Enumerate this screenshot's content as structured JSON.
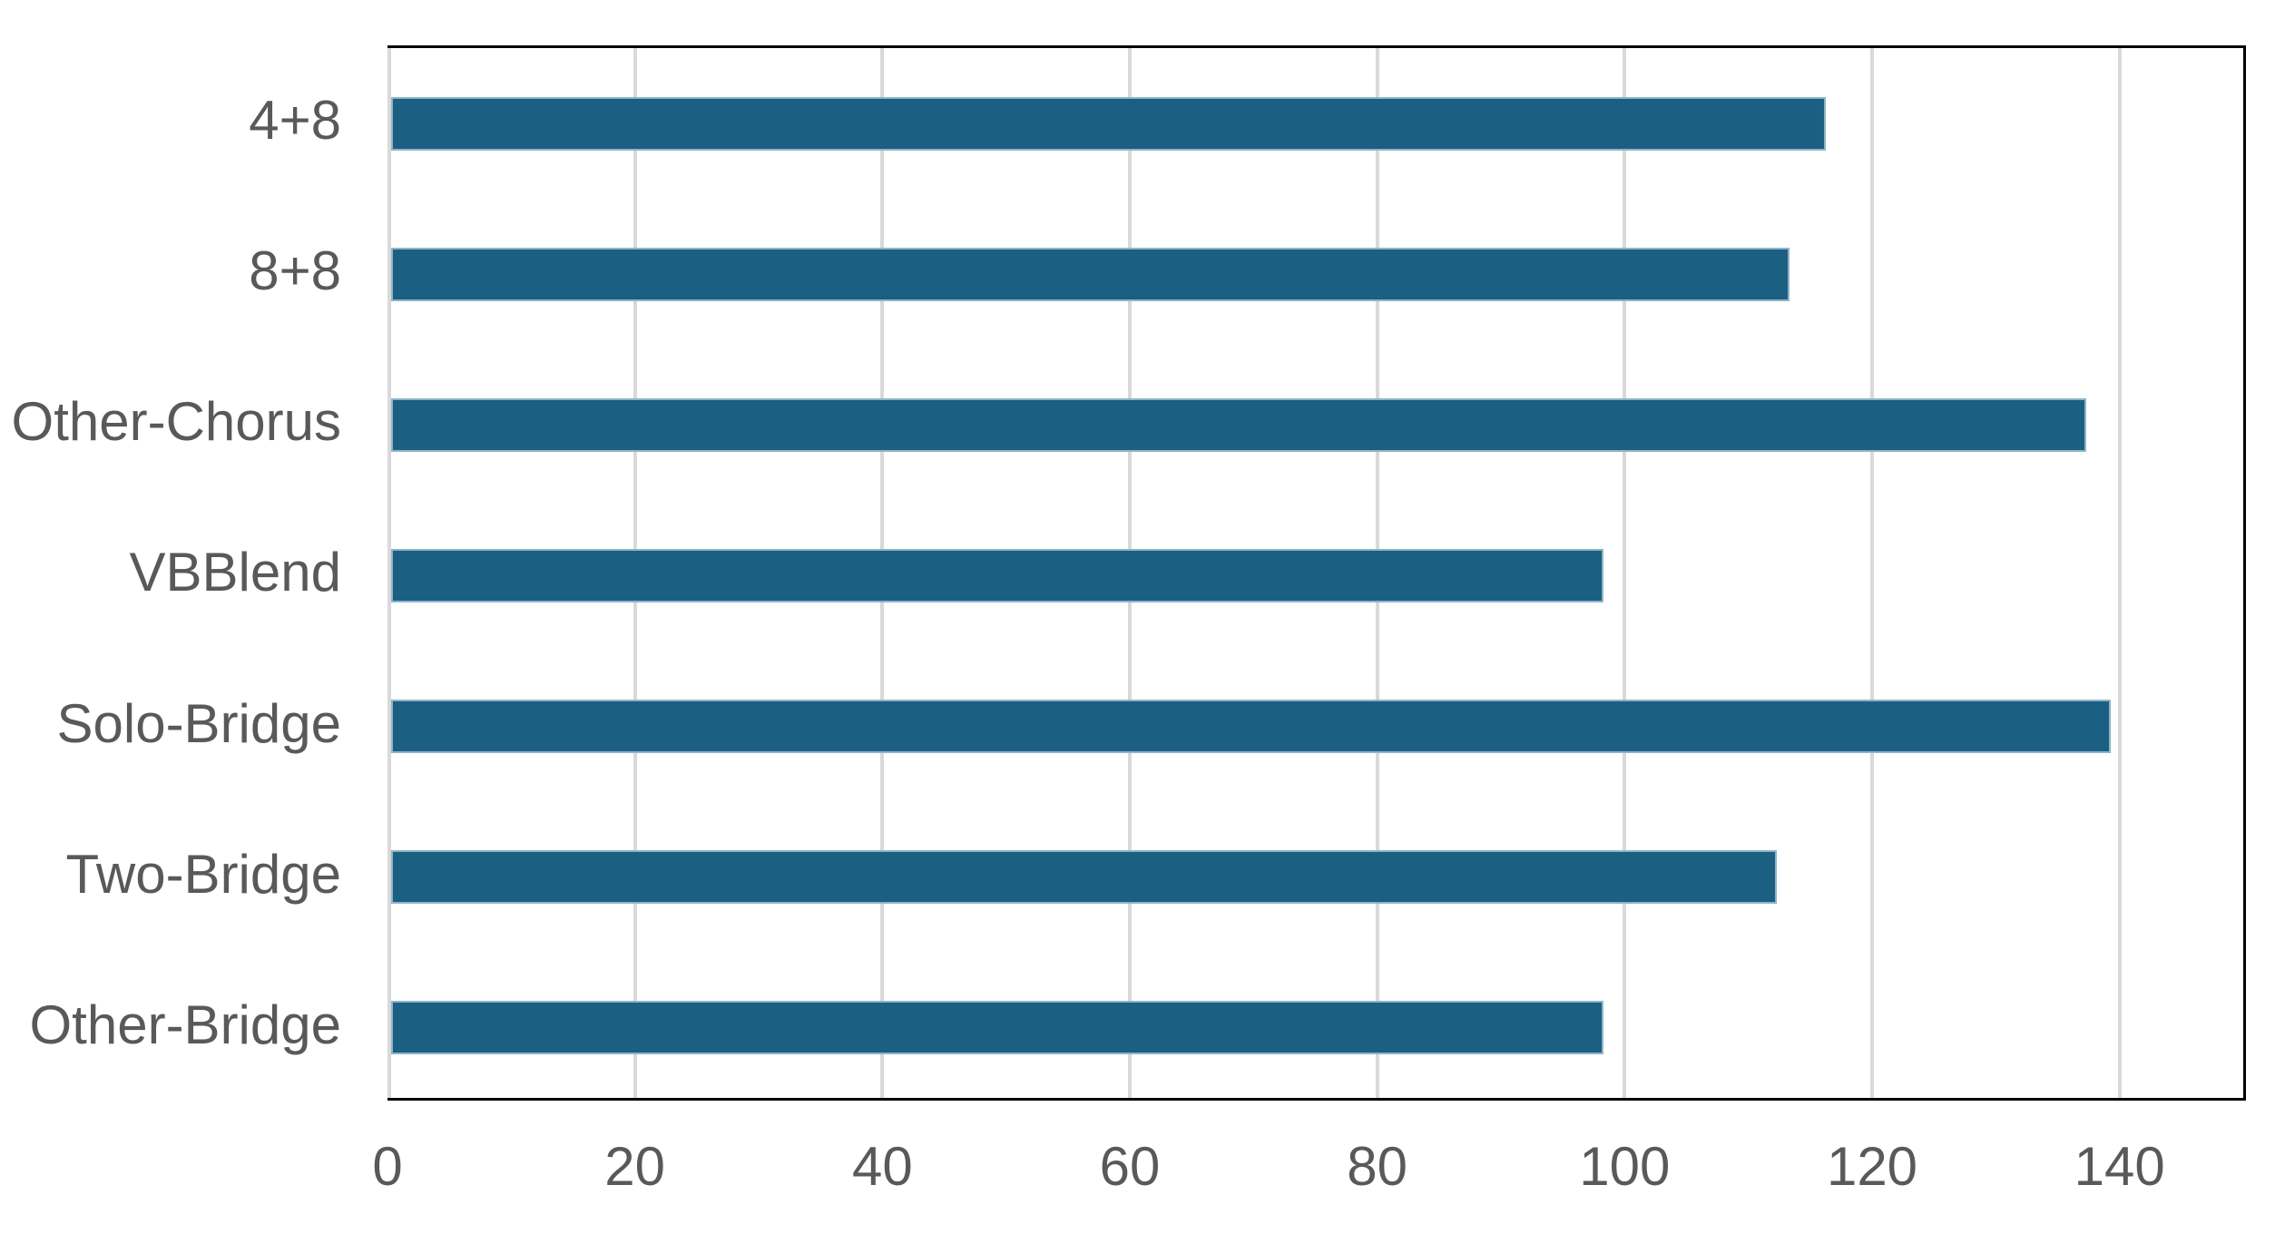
{
  "chart_data": {
    "type": "bar",
    "orientation": "horizontal",
    "title": "",
    "xlabel": "",
    "ylabel": "",
    "categories": [
      "4+8",
      "8+8",
      "Other-Chorus",
      "VBBlend",
      "Solo-Bridge",
      "Two-Bridge",
      "Other-Bridge"
    ],
    "values": [
      116,
      113,
      137,
      98,
      139,
      112,
      98
    ],
    "xlim": [
      0,
      150
    ],
    "xticks": [
      0,
      20,
      40,
      60,
      80,
      100,
      120,
      140
    ],
    "grid": true,
    "legend": false,
    "colors": {
      "bar_fill": "#1B5F82",
      "bar_edge": "#8FB4C7",
      "gridline": "#D9D9D9",
      "zero_axis_line": "#D9D9D9",
      "plot_border": "#000000",
      "label_text": "#595959",
      "background": "#FFFFFF"
    }
  }
}
